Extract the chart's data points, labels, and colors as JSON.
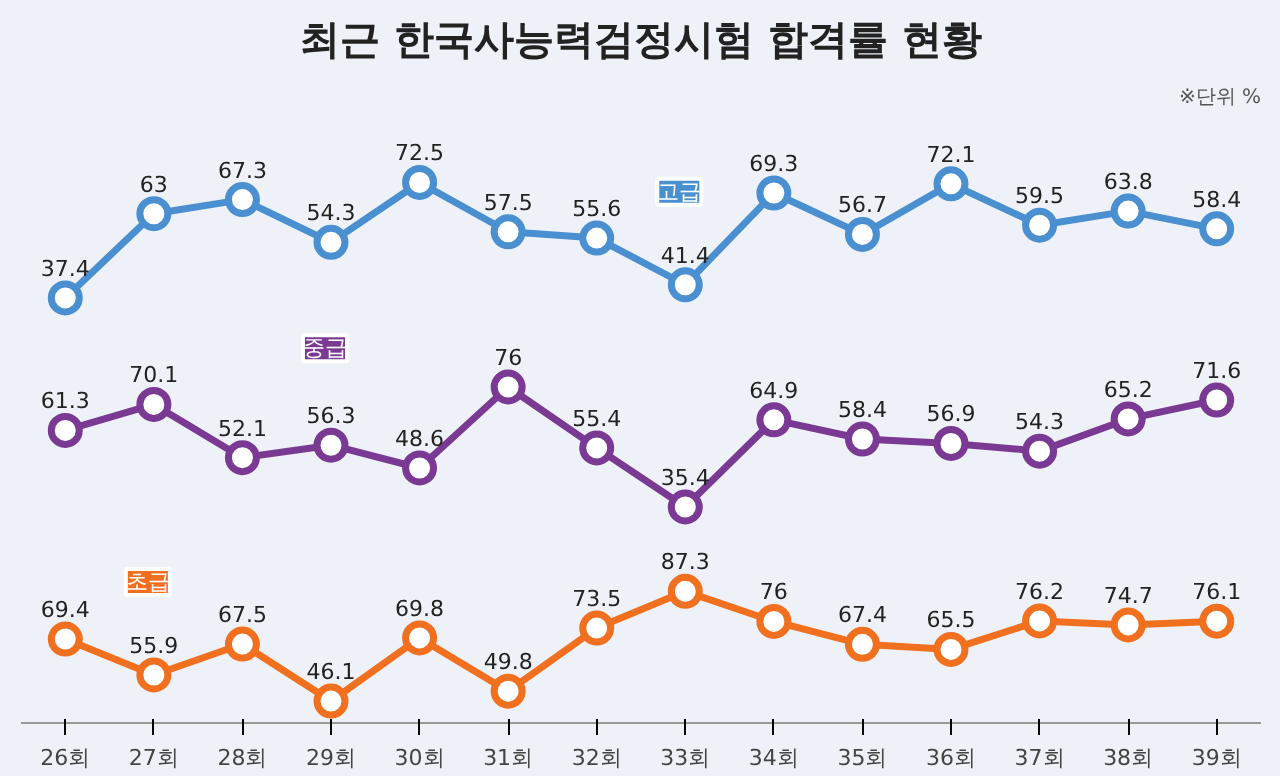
{
  "chart_data": [
    {
      "type": "line",
      "title": "최근 한국사능력검정시험 합격률 현황",
      "annotations": [
        "※단위 %"
      ],
      "categories": [
        null,
        null,
        null,
        null,
        null,
        null,
        null,
        null,
        null,
        null,
        null,
        null,
        null,
        null
      ],
      "series": [
        {
          "name": "고급",
          "color": "#4a8fd0",
          "values": [
            37.4,
            63,
            67.3,
            54.3,
            72.5,
            57.5,
            55.6,
            41.4,
            69.3,
            56.7,
            72.1,
            59.5,
            63.8,
            58.4
          ]
        }
      ],
      "tick_labels": false,
      "data_labels": true,
      "marker": "circle",
      "line_style": "solid"
    },
    {
      "type": "line",
      "categories": [
        null,
        null,
        null,
        null,
        null,
        null,
        null,
        null,
        null,
        null,
        null,
        null,
        null,
        null
      ],
      "series": [
        {
          "name": "중급",
          "color": "#7a3a94",
          "values": [
            61.3,
            70.1,
            52.1,
            56.3,
            48.6,
            76,
            55.4,
            35.4,
            64.9,
            58.4,
            56.9,
            54.3,
            65.2,
            71.6
          ]
        }
      ],
      "tick_labels": false,
      "data_labels": true,
      "marker": "circle",
      "line_style": "solid"
    },
    {
      "type": "line",
      "categories": [
        "26회",
        "27회",
        "28회",
        "29회",
        "30회",
        "31회",
        "32회",
        "33회",
        "34회",
        "35회",
        "36회",
        "37회",
        "38회",
        "39회"
      ],
      "series": [
        {
          "name": "초급",
          "color": "#f07020",
          "values": [
            69.4,
            55.9,
            67.5,
            46.1,
            69.8,
            49.8,
            73.5,
            87.3,
            76,
            67.4,
            65.5,
            76.2,
            74.7,
            76.1
          ]
        }
      ],
      "tick_labels": "x",
      "data_labels": true,
      "marker": "circle",
      "line_style": "solid"
    }
  ]
}
